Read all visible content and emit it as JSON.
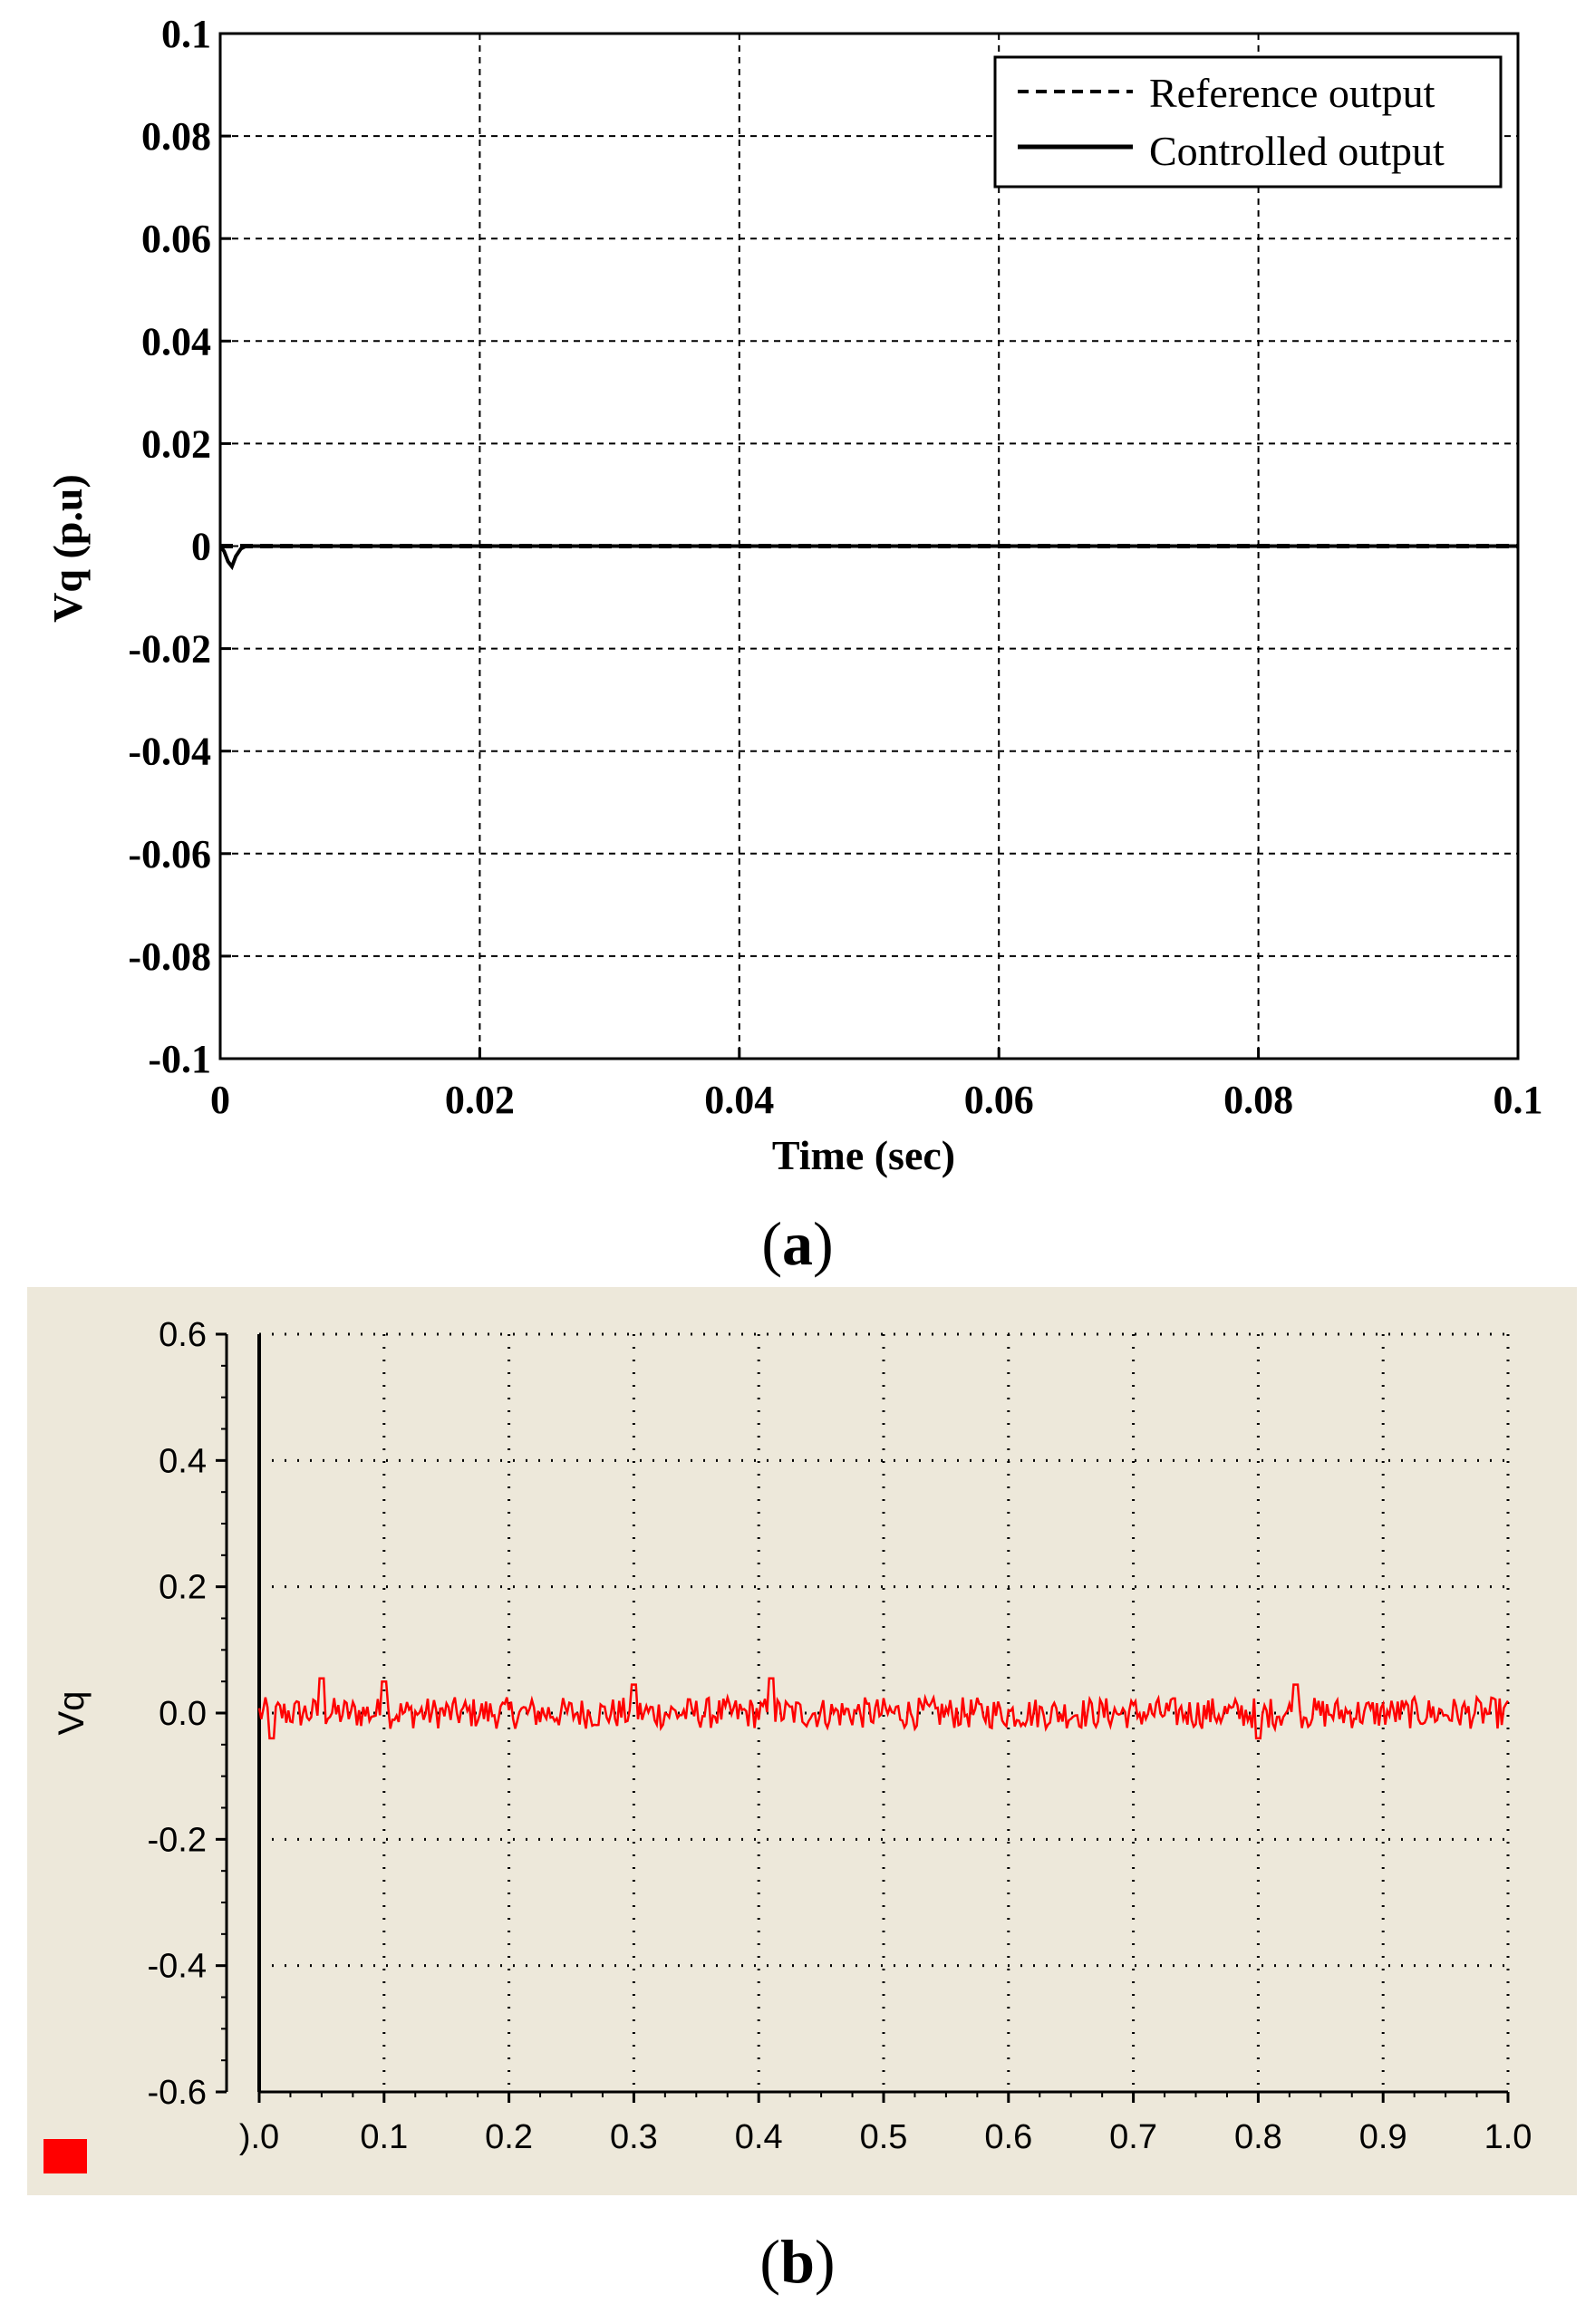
{
  "chart_data": [
    {
      "type": "line",
      "caption_open": "(",
      "caption_letter": "a",
      "caption_close": ")",
      "xlabel": "Time (sec)",
      "ylabel": "Vq (p.u)",
      "xlim": [
        0,
        0.1
      ],
      "ylim": [
        -0.1,
        0.1
      ],
      "xticks": [
        0,
        0.02,
        0.04,
        0.06,
        0.08,
        0.1
      ],
      "xtick_labels": [
        "0",
        "0.02",
        "0.04",
        "0.06",
        "0.08",
        "0.1"
      ],
      "yticks": [
        0.1,
        0.08,
        0.06,
        0.04,
        0.02,
        0,
        -0.02,
        -0.04,
        -0.06,
        -0.08,
        -0.1
      ],
      "ytick_labels": [
        "0.1",
        "0.08",
        "0.06",
        "0.04",
        "0.02",
        "0",
        "-0.02",
        "-0.04",
        "-0.06",
        "-0.08",
        "-0.1"
      ],
      "grid": true,
      "legend_position": "top-right",
      "series": [
        {
          "name": "Reference output",
          "style": "dashed",
          "color": "#000000",
          "points": [
            [
              0,
              0
            ],
            [
              0.1,
              0
            ]
          ]
        },
        {
          "name": "Controlled output",
          "style": "solid",
          "color": "#000000",
          "points": [
            [
              0,
              0
            ],
            [
              0.0003,
              -0.001
            ],
            [
              0.0006,
              -0.003
            ],
            [
              0.0009,
              -0.004
            ],
            [
              0.0012,
              -0.002
            ],
            [
              0.0016,
              -0.0005
            ],
            [
              0.002,
              0
            ],
            [
              0.1,
              0
            ]
          ]
        }
      ]
    },
    {
      "type": "line",
      "caption_open": "(",
      "caption_letter": "b",
      "caption_close": ")",
      "ylabel": "Vq",
      "xlim": [
        0,
        1.0
      ],
      "ylim": [
        -0.6,
        0.6
      ],
      "xticks": [
        0,
        0.1,
        0.2,
        0.3,
        0.4,
        0.5,
        0.6,
        0.7,
        0.8,
        0.9,
        1.0
      ],
      "xtick_labels": [
        ").0",
        "0.1",
        "0.2",
        "0.3",
        "0.4",
        "0.5",
        "0.6",
        "0.7",
        "0.8",
        "0.9",
        "1.0"
      ],
      "yticks": [
        0.6,
        0.4,
        0.2,
        0.0,
        -0.2,
        -0.4,
        -0.6
      ],
      "ytick_labels": [
        "0.6",
        "0.4",
        "0.2",
        "0.0",
        "-0.2",
        "-0.4",
        "-0.6"
      ],
      "grid": true,
      "background": "#ede8da",
      "series": [
        {
          "style": "noise",
          "color": "#ff0000",
          "x_range": [
            0,
            1.0
          ],
          "mean": 0.0,
          "amplitude": 0.025,
          "peaks": [
            [
              0.05,
              0.055
            ],
            [
              0.1,
              0.05
            ],
            [
              0.3,
              0.045
            ],
            [
              0.41,
              0.055
            ],
            [
              0.83,
              0.045
            ]
          ],
          "troughs": [
            [
              0.01,
              -0.04
            ],
            [
              0.8,
              -0.04
            ]
          ]
        }
      ],
      "legend_marker_color": "#ff0000"
    }
  ]
}
